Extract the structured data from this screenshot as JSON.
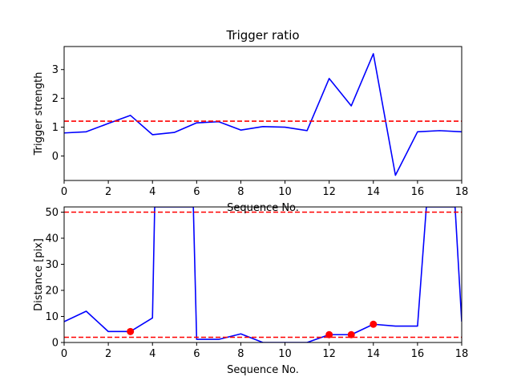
{
  "chart_data": [
    {
      "type": "line",
      "title": "Trigger ratio",
      "xlabel": "Sequence No.",
      "ylabel": "Trigger strength",
      "xlim": [
        0,
        18
      ],
      "ylim": [
        -0.85,
        3.8
      ],
      "xticks": [
        0,
        2,
        4,
        6,
        8,
        10,
        12,
        14,
        16,
        18
      ],
      "yticks": [
        0,
        1,
        2,
        3
      ],
      "grid": false,
      "series": [
        {
          "color": "#0000ff",
          "x": [
            0,
            1,
            2,
            3,
            4,
            5,
            6,
            7,
            8,
            9,
            10,
            11,
            12,
            13,
            14,
            15,
            16,
            17,
            18
          ],
          "y": [
            0.8,
            0.84,
            1.13,
            1.41,
            0.74,
            0.82,
            1.15,
            1.19,
            0.9,
            1.02,
            1.0,
            0.88,
            2.69,
            1.74,
            3.55,
            -0.67,
            0.84,
            0.88,
            0.84
          ]
        }
      ],
      "hlines": [
        {
          "y": 1.21,
          "color": "#ff0000",
          "style": "dashed"
        }
      ]
    },
    {
      "type": "line",
      "title": "",
      "xlabel": "Sequence No.",
      "ylabel": "Distance [pix]",
      "xlim": [
        0,
        18
      ],
      "ylim": [
        0,
        52
      ],
      "xticks": [
        0,
        2,
        4,
        6,
        8,
        10,
        12,
        14,
        16,
        18
      ],
      "yticks": [
        0,
        10,
        20,
        30,
        40,
        50
      ],
      "grid": false,
      "series": [
        {
          "color": "#0000ff",
          "x": [
            0,
            1,
            2,
            3,
            4,
            4.1,
            5.85,
            6,
            7,
            8,
            9,
            10,
            11,
            12,
            13,
            14,
            15,
            16,
            16.4,
            17.7,
            18
          ],
          "y": [
            8,
            12,
            4.2,
            4.2,
            9.4,
            52,
            52,
            1.2,
            1.2,
            3.3,
            0,
            0,
            0,
            3,
            3,
            7,
            6.3,
            6.3,
            52,
            52,
            8
          ]
        }
      ],
      "markers": {
        "color": "#ff0000",
        "x": [
          3,
          12,
          13,
          14
        ],
        "y": [
          4.2,
          3,
          3,
          7
        ]
      },
      "hlines": [
        {
          "y": 50,
          "color": "#ff0000",
          "style": "dashed"
        },
        {
          "y": 2,
          "color": "#ff0000",
          "style": "dashed"
        }
      ]
    }
  ]
}
